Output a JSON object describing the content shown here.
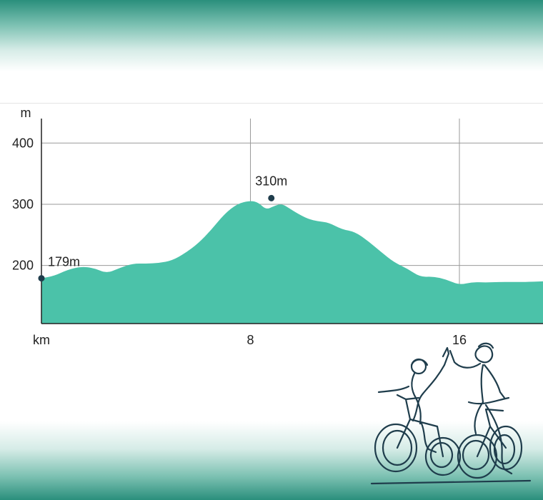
{
  "chart_data": {
    "type": "area",
    "ylabel": "m",
    "xlabel": "km",
    "ylim": [
      105,
      440
    ],
    "xlim": [
      0,
      19.2
    ],
    "y_ticks": [
      200,
      300,
      400
    ],
    "x_ticks": [
      {
        "value": 0,
        "label": "km"
      },
      {
        "value": 8,
        "label": "8"
      },
      {
        "value": 16,
        "label": "16"
      }
    ],
    "grid": true,
    "fill_color": "#4bc2a9",
    "series": [
      {
        "x": [
          0,
          0.5,
          1.0,
          1.5,
          2.0,
          2.5,
          3.0,
          3.5,
          4.0,
          4.5,
          5.0,
          5.5,
          6.0,
          6.5,
          7.0,
          7.5,
          8.0,
          8.3,
          8.6,
          8.9,
          9.2,
          9.5,
          9.8,
          10.2,
          10.6,
          11.0,
          11.5,
          12.0,
          12.5,
          13.0,
          13.5,
          14.0,
          14.5,
          15.0,
          15.5,
          16.0,
          16.5,
          17.0,
          17.5,
          18.0,
          18.5,
          19.2
        ],
        "y": [
          179,
          183,
          193,
          198,
          196,
          187,
          196,
          203,
          203,
          204,
          208,
          220,
          236,
          258,
          284,
          301,
          306,
          303,
          291,
          297,
          301,
          293,
          285,
          276,
          272,
          270,
          259,
          255,
          240,
          222,
          205,
          195,
          181,
          182,
          177,
          168,
          173,
          172,
          173,
          173,
          173,
          174
        ]
      }
    ],
    "annotations": [
      {
        "x": 0,
        "y": 179,
        "label": "179m"
      },
      {
        "x": 8.8,
        "y": 310,
        "label": "310m"
      }
    ]
  },
  "colors": {
    "gradient": "#2a8f7c",
    "marker": "#1f3d4c",
    "illustration": "#1f3d4c"
  },
  "illustration": {
    "icon": "two-cyclists-high-five-line-art-icon"
  }
}
